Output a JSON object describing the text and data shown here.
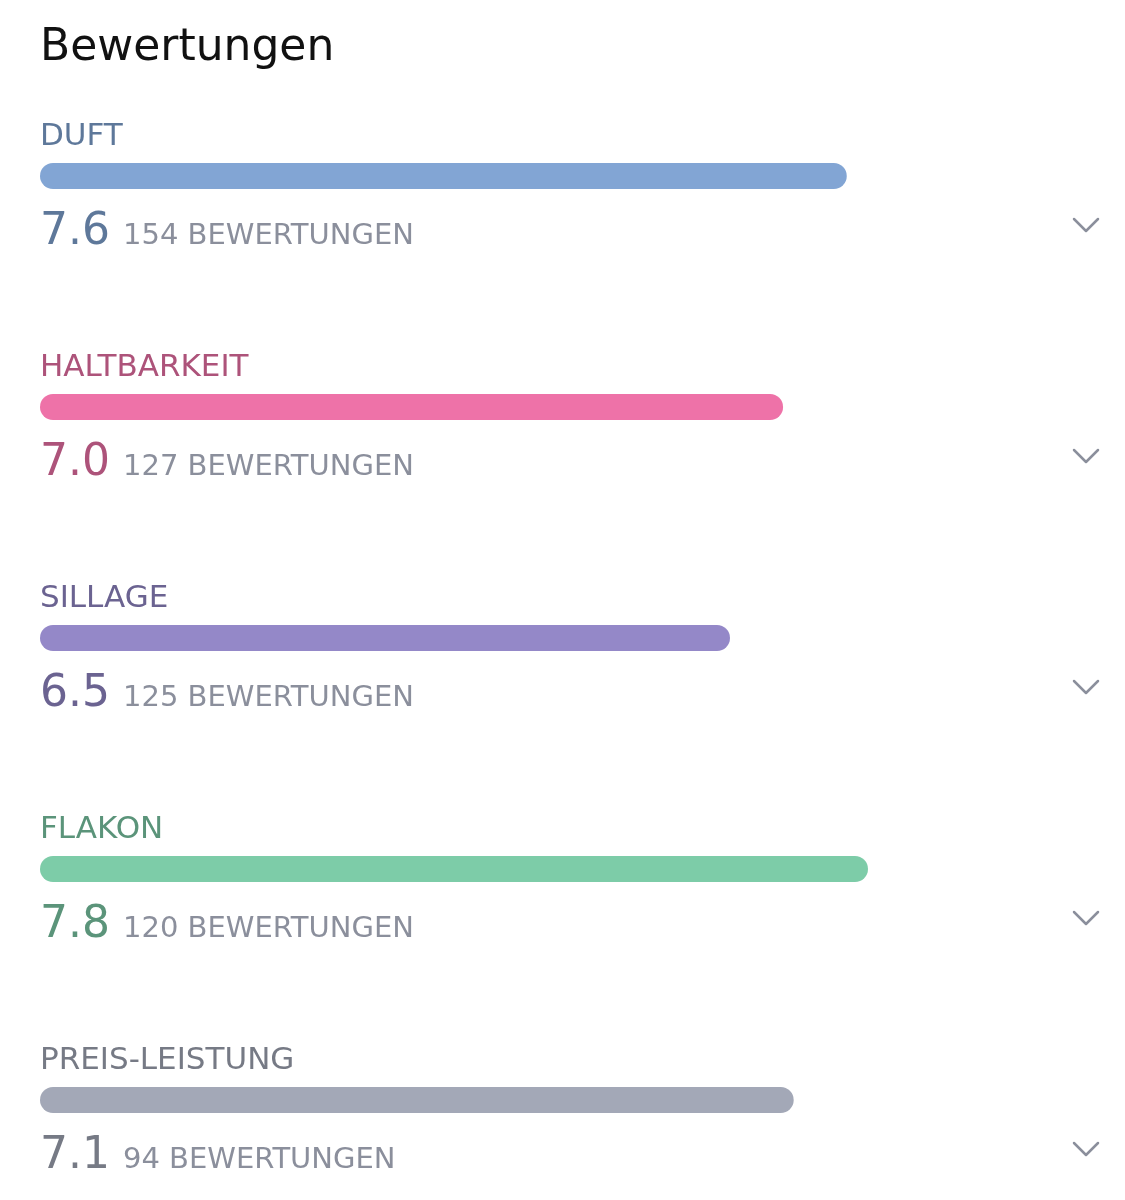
{
  "chart_data": {
    "type": "bar",
    "orientation": "horizontal",
    "title": "Bewertungen",
    "categories": [
      "DUFT",
      "HALTBARKEIT",
      "SILLAGE",
      "FLAKON",
      "PREIS-LEISTUNG"
    ],
    "values": [
      7.6,
      7.0,
      6.5,
      7.8,
      7.1
    ],
    "value_labels": [
      "7.6",
      "7.0",
      "6.5",
      "7.8",
      "7.1"
    ],
    "colors": [
      "#82a5d4",
      "#ee72a8",
      "#9488c8",
      "#7dcca8",
      "#a3a8b7"
    ],
    "annotations": [
      "154 BEWERTUNGEN",
      "127 BEWERTUNGEN",
      "125 BEWERTUNGEN",
      "120 BEWERTUNGEN",
      "94 BEWERTUNGEN"
    ]
  }
}
